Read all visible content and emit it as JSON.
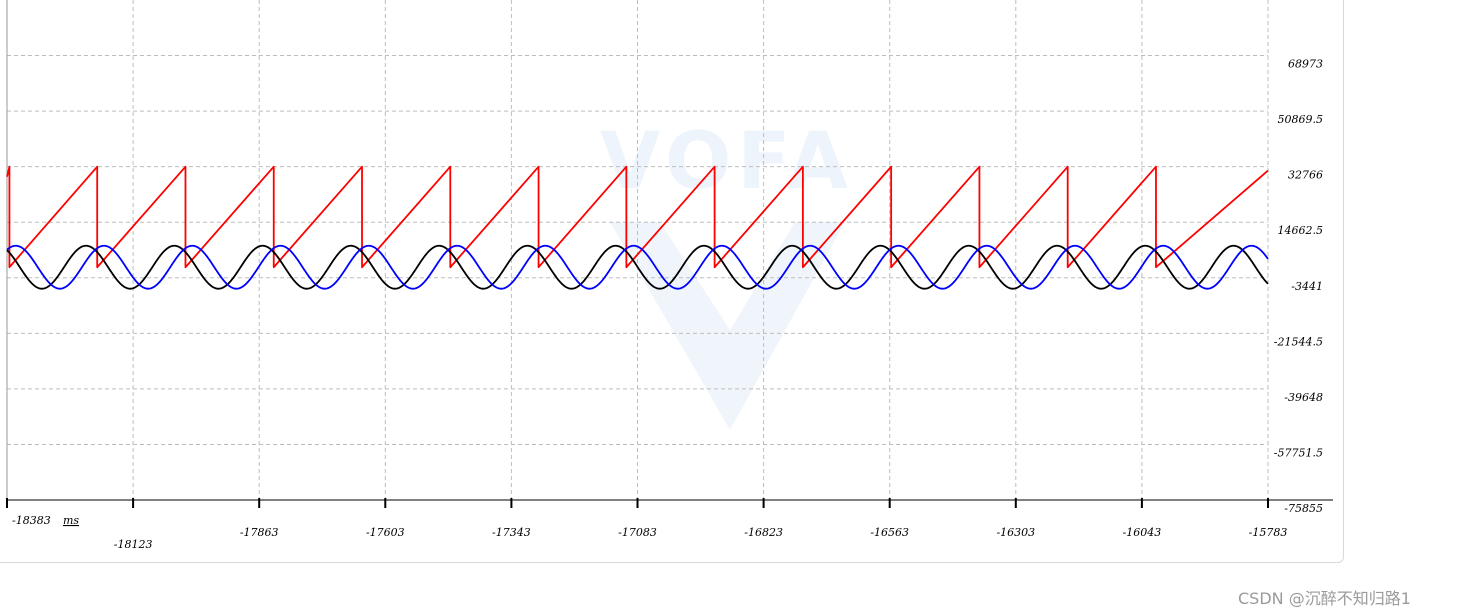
{
  "chart_data": {
    "type": "line",
    "x_unit": "ms",
    "x_ticks": [
      -18383,
      -18123,
      -17863,
      -17603,
      -17343,
      -17083,
      -16823,
      -16563,
      -16303,
      -16043,
      -15783
    ],
    "x_tick_labels": [
      "-18383",
      "-18123",
      "-17863",
      "-17603",
      "-17343",
      "-17083",
      "-16823",
      "-16563",
      "-16303",
      "-16043",
      "-15783"
    ],
    "xlim": [
      -18383,
      -15783
    ],
    "y_ticks": [
      68973,
      50869.5,
      32766,
      14662.5,
      -3441,
      -21544.5,
      -39648,
      -57751.5,
      -75855
    ],
    "y_tick_labels": [
      "68973",
      "50869.5",
      "32766",
      "14662.5",
      "-3441",
      "-21544.5",
      "-39648",
      "-57751.5",
      "-75855"
    ],
    "ylim": [
      -75855,
      87076.5
    ],
    "grid": true,
    "y_axis_side": "right",
    "watermark": "VOFA",
    "series": [
      {
        "color": "#ff0000",
        "shape": "sawtooth",
        "min": 0,
        "max": 32767,
        "period_ms": 182,
        "reset_x": [
          -18378,
          -18197,
          -18015,
          -17833,
          -17651,
          -17469,
          -17287,
          -17106,
          -16924,
          -16742,
          -16560,
          -16378,
          -16196,
          -16014
        ],
        "values": [
          {
            "x": -18383,
            "y": 29500
          },
          {
            "x": -18378,
            "y": 32767
          },
          {
            "x": -18378,
            "y": 0
          },
          {
            "x": -18197,
            "y": 32767
          },
          {
            "x": -18197,
            "y": 0
          },
          {
            "x": -18015,
            "y": 32767
          },
          {
            "x": -18015,
            "y": 0
          },
          {
            "x": -17833,
            "y": 32767
          },
          {
            "x": -17833,
            "y": 0
          },
          {
            "x": -17651,
            "y": 32767
          },
          {
            "x": -17651,
            "y": 0
          },
          {
            "x": -17469,
            "y": 32767
          },
          {
            "x": -17469,
            "y": 0
          },
          {
            "x": -17287,
            "y": 32767
          },
          {
            "x": -17287,
            "y": 0
          },
          {
            "x": -17106,
            "y": 32767
          },
          {
            "x": -17106,
            "y": 0
          },
          {
            "x": -16924,
            "y": 32767
          },
          {
            "x": -16924,
            "y": 0
          },
          {
            "x": -16742,
            "y": 32767
          },
          {
            "x": -16742,
            "y": 0
          },
          {
            "x": -16560,
            "y": 32767
          },
          {
            "x": -16560,
            "y": 0
          },
          {
            "x": -16378,
            "y": 32767
          },
          {
            "x": -16378,
            "y": 0
          },
          {
            "x": -16196,
            "y": 32767
          },
          {
            "x": -16196,
            "y": 0
          },
          {
            "x": -16014,
            "y": 32767
          },
          {
            "x": -16014,
            "y": 0
          },
          {
            "x": -15783,
            "y": 31500
          }
        ]
      },
      {
        "color": "#000000",
        "shape": "sine",
        "amplitude": 7000,
        "offset": 0,
        "period_ms": 182,
        "first_peak_ms": -18220
      },
      {
        "color": "#0000ff",
        "shape": "sine",
        "amplitude": 7000,
        "offset": 0,
        "period_ms": 182,
        "first_peak_ms": -18365
      }
    ]
  },
  "footer": {
    "credit": "CSDN @沉醉不知归路1"
  }
}
